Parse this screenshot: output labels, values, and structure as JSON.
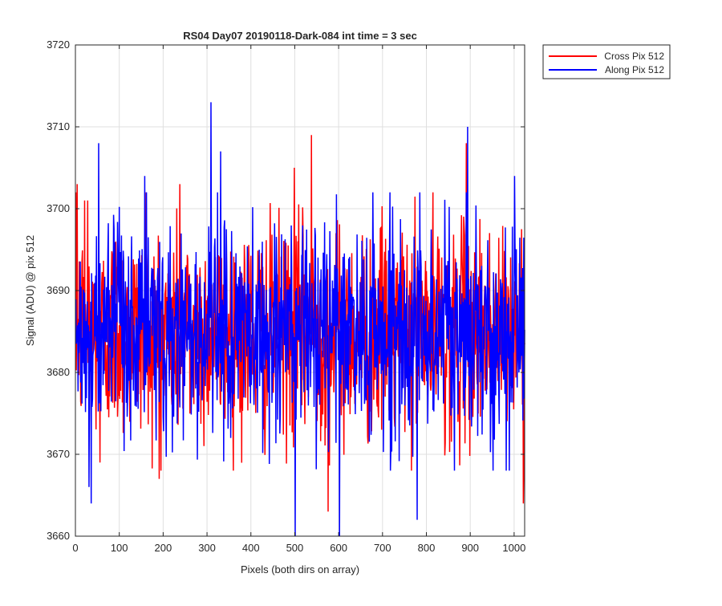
{
  "chart_data": {
    "type": "line",
    "title": "RS04 Day07 20190118-Dark-084 int time = 3 sec",
    "xlabel": "Pixels (both dirs on array)",
    "ylabel": "Signal (ADU) @ pix 512",
    "xlim": [
      0,
      1024
    ],
    "ylim": [
      3660,
      3720
    ],
    "xticks": [
      0,
      100,
      200,
      300,
      400,
      500,
      600,
      700,
      800,
      900,
      1000
    ],
    "yticks": [
      3660,
      3670,
      3680,
      3690,
      3700,
      3710,
      3720
    ],
    "grid": true,
    "legend_position": "outside-top-right",
    "series": [
      {
        "name": "Cross Pix 512",
        "color": "#ff0000",
        "mean": 3685,
        "noise_sd": 6.5,
        "n_points": 1024,
        "seed": 12345,
        "peaks": [
          {
            "x": 3,
            "y": 3703
          },
          {
            "x": 20,
            "y": 3701
          },
          {
            "x": 27,
            "y": 3701
          },
          {
            "x": 55,
            "y": 3669
          },
          {
            "x": 160,
            "y": 3702
          },
          {
            "x": 190,
            "y": 3667
          },
          {
            "x": 237,
            "y": 3703
          },
          {
            "x": 498,
            "y": 3705
          },
          {
            "x": 537,
            "y": 3709
          },
          {
            "x": 575,
            "y": 3663
          },
          {
            "x": 890,
            "y": 3708
          },
          {
            "x": 1020,
            "y": 3664
          }
        ]
      },
      {
        "name": "Along Pix 512",
        "color": "#0000ff",
        "mean": 3685,
        "noise_sd": 6.5,
        "n_points": 1024,
        "seed": 67890,
        "peaks": [
          {
            "x": 30,
            "y": 3666
          },
          {
            "x": 35,
            "y": 3664
          },
          {
            "x": 52,
            "y": 3708
          },
          {
            "x": 157,
            "y": 3704
          },
          {
            "x": 308,
            "y": 3713
          },
          {
            "x": 330,
            "y": 3707
          },
          {
            "x": 500,
            "y": 3660
          },
          {
            "x": 601,
            "y": 3660
          },
          {
            "x": 778,
            "y": 3662
          },
          {
            "x": 893,
            "y": 3710
          },
          {
            "x": 1000,
            "y": 3704
          }
        ]
      }
    ]
  }
}
